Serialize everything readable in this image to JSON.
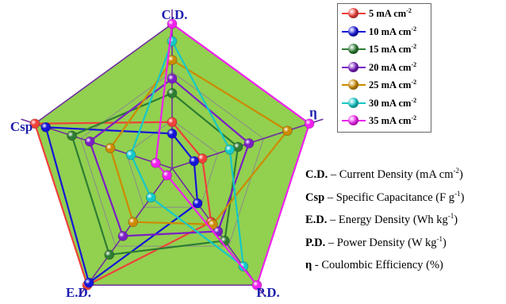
{
  "chart_data": {
    "type": "radar",
    "axes": [
      "C.D.",
      "η",
      "P.D.",
      "E.D.",
      "Csp"
    ],
    "levels": 3,
    "series": [
      {
        "name": "5 mA cm⁻²",
        "color": "#f0403a",
        "values": [
          0.32,
          0.22,
          0.46,
          1.0,
          1.0
        ]
      },
      {
        "name": "10 mA cm⁻²",
        "color": "#1515d8",
        "values": [
          0.24,
          0.16,
          0.3,
          0.98,
          0.92
        ]
      },
      {
        "name": "15 mA cm⁻²",
        "color": "#2e7d32",
        "values": [
          0.52,
          0.48,
          0.62,
          0.74,
          0.73
        ]
      },
      {
        "name": "20 mA cm⁻²",
        "color": "#7a1fc4",
        "values": [
          0.62,
          0.56,
          0.54,
          0.58,
          0.6
        ]
      },
      {
        "name": "25 mA cm⁻²",
        "color": "#cc8a00",
        "values": [
          0.75,
          0.84,
          0.48,
          0.46,
          0.45
        ]
      },
      {
        "name": "30 mA cm⁻²",
        "color": "#14c8c8",
        "values": [
          0.88,
          0.42,
          0.84,
          0.25,
          0.3
        ]
      },
      {
        "name": "35 mA cm⁻²",
        "color": "#f020f0",
        "values": [
          1.0,
          1.0,
          1.0,
          0.06,
          0.12
        ]
      }
    ]
  },
  "legend": [
    {
      "prefix": "5 mA cm",
      "sup": "-2"
    },
    {
      "prefix": "10 mA cm",
      "sup": "-2"
    },
    {
      "prefix": "15 mA cm",
      "sup": "-2"
    },
    {
      "prefix": "20 mA cm",
      "sup": "-2"
    },
    {
      "prefix": "25 mA cm",
      "sup": "-2"
    },
    {
      "prefix": "30 mA cm",
      "sup": "-2"
    },
    {
      "prefix": "35 mA cm",
      "sup": "-2"
    }
  ],
  "glossary": [
    {
      "abbr": "C.D.",
      "sep": " – ",
      "text": "Current Density (mA cm",
      "sup": "-2",
      "tail": ")"
    },
    {
      "abbr": "Csp",
      "sep": " – ",
      "text": "Specific Capacitance (F g",
      "sup": "-1",
      "tail": ")"
    },
    {
      "abbr": "E.D.",
      "sep": " – ",
      "text": "Energy Density (Wh kg",
      "sup": "-1",
      "tail": ")"
    },
    {
      "abbr": "P.D.",
      "sep": " – ",
      "text": "Power Density (W kg",
      "sup": "-1",
      "tail": ")"
    },
    {
      "abbr": "η",
      "sep": " - ",
      "text": "Coulombic Efficiency (%)",
      "sup": "",
      "tail": ""
    }
  ],
  "colors": {
    "background_fill": "#92d050",
    "frame_line": "#7030a0",
    "grid_line": "#8a8a8a",
    "axis_label": "#1f1fb0"
  }
}
